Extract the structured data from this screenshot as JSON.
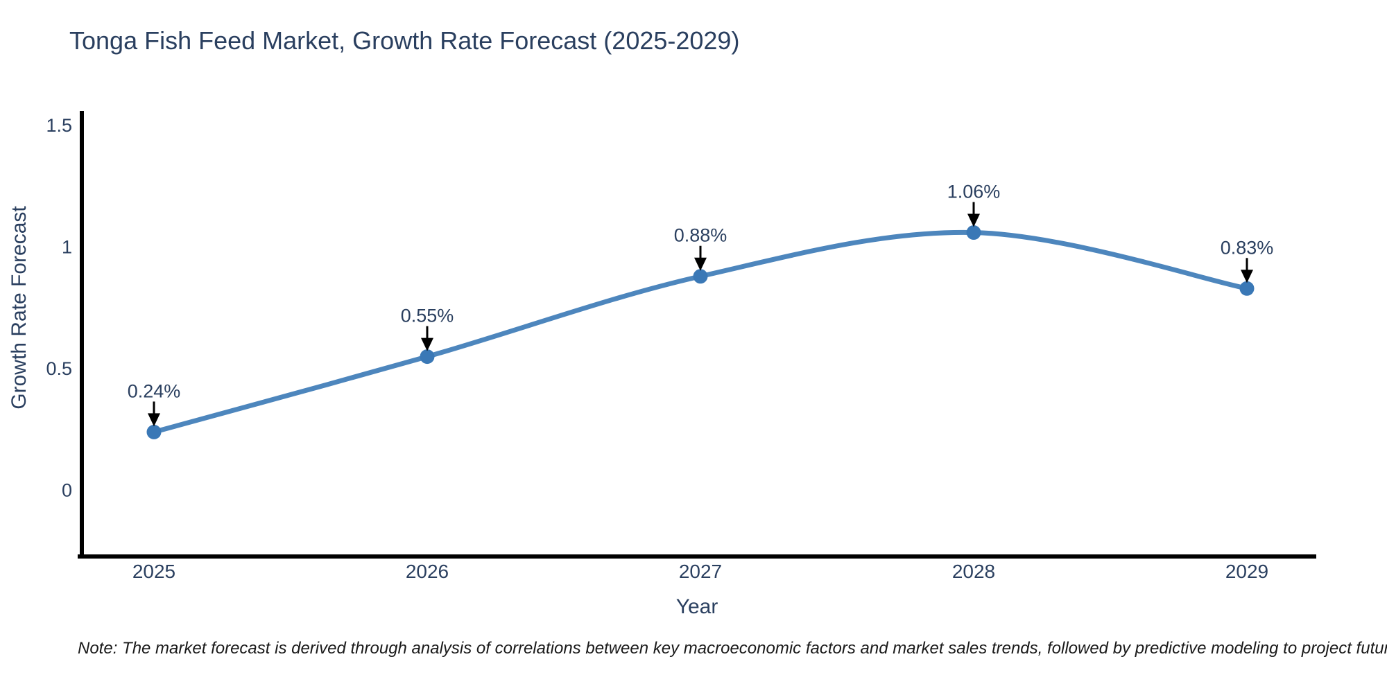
{
  "title": {
    "text": "Tonga Fish Feed Market, Growth Rate Forecast (2025-2029)"
  },
  "note": {
    "text": "Note: The market forecast is derived through analysis of correlations between key macroeconomic factors and market sales trends, followed by predictive modeling to project future sales"
  },
  "chart_data": {
    "type": "line",
    "title": "Tonga Fish Feed Market, Growth Rate Forecast (2025-2029)",
    "xlabel": "Year",
    "ylabel": "Growth Rate Forecast",
    "line_shape": "spline",
    "grid": false,
    "legend": false,
    "categories": [
      "2025",
      "2026",
      "2027",
      "2028",
      "2029"
    ],
    "series": [
      {
        "name": "Growth Rate Forecast",
        "values": [
          0.24,
          0.55,
          0.88,
          1.06,
          0.83
        ],
        "point_labels": [
          "0.24%",
          "0.55%",
          "0.88%",
          "1.06%",
          "0.83%"
        ]
      }
    ],
    "yticks": [
      0,
      0.5,
      1,
      1.5
    ],
    "ytick_labels": [
      "0",
      "0.5",
      "1",
      "1.5"
    ],
    "ylim": [
      -0.28,
      1.56
    ],
    "annotations_have_arrows": true,
    "colors": {
      "line": "#4d86bd",
      "marker": "#3a78b6",
      "arrow": "#000000",
      "text": "#2a3f5f",
      "axis": "#000000",
      "note_text": "#1a1a1a",
      "background": "#ffffff"
    }
  }
}
